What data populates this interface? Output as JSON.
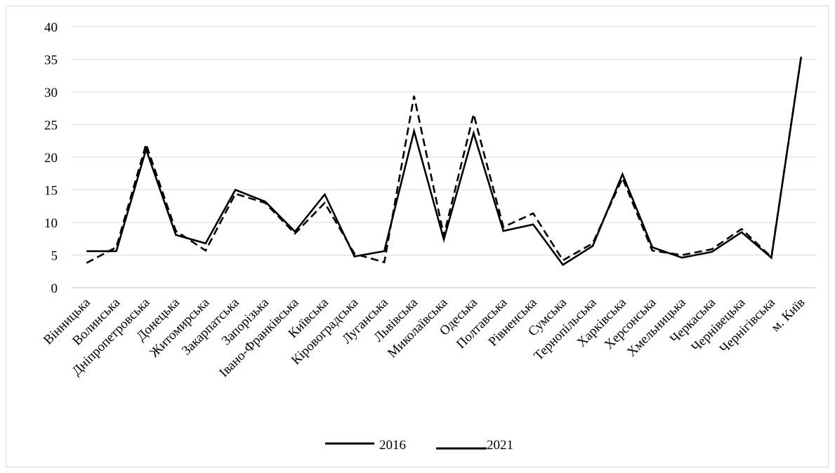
{
  "chart_data": {
    "type": "line",
    "title": "",
    "xlabel": "",
    "ylabel": "",
    "ylim": [
      0,
      40
    ],
    "yticks": [
      0,
      5,
      10,
      15,
      20,
      25,
      30,
      35,
      40
    ],
    "grid": true,
    "legend_position": "bottom",
    "categories": [
      "Вінницька",
      "Волинська",
      "Дніпропетровська",
      "Донецька",
      "Житомирська",
      "Закарпатська",
      "Запорізька",
      "Івано-Франківська",
      "Київська",
      "Кіровоградська",
      "Луганська",
      "Львівська",
      "Миколаївська",
      "Одеська",
      "Полтавська",
      "Рівненська",
      "Сумська",
      "Тернопільська",
      "Харківська",
      "Херсонська",
      "Хмельницька",
      "Черкаська",
      "Чернівецька",
      "Чернігівська",
      "м. Київ"
    ],
    "series": [
      {
        "name": "2016",
        "style": "solid",
        "color": "#000000",
        "values": [
          5.6,
          5.6,
          21.2,
          8.1,
          6.8,
          15.0,
          13.2,
          8.6,
          14.3,
          4.8,
          5.6,
          24.0,
          7.4,
          23.7,
          8.7,
          9.7,
          3.5,
          6.4,
          17.4,
          6.2,
          4.6,
          5.5,
          8.5,
          4.6,
          35.4
        ]
      },
      {
        "name": "2021",
        "style": "dashed",
        "color": "#000000",
        "values": [
          3.8,
          6.2,
          22.0,
          8.7,
          5.7,
          14.4,
          13.0,
          8.3,
          13.0,
          5.2,
          3.9,
          29.4,
          8.0,
          26.6,
          9.3,
          11.4,
          4.2,
          6.8,
          16.8,
          5.7,
          5.0,
          5.9,
          9.0,
          4.7,
          35.4
        ]
      }
    ]
  }
}
